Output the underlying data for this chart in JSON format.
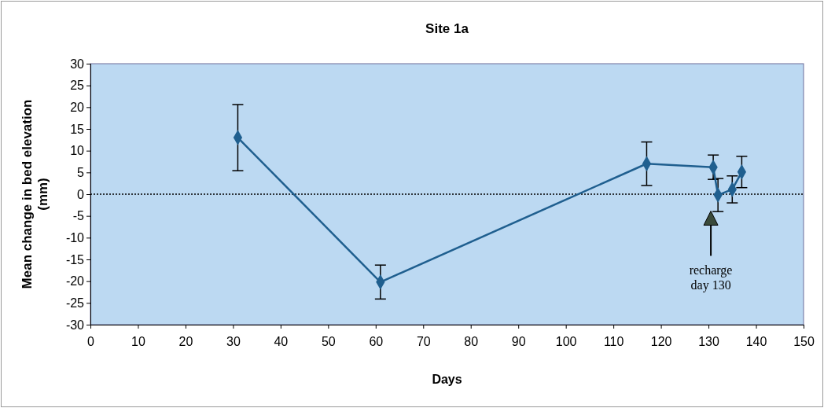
{
  "chart_data": {
    "type": "line",
    "title": "Site 1a",
    "xlabel": "Days",
    "ylabel": "Mean change in bed elevation (mm)",
    "x": [
      31,
      61,
      117,
      131,
      132,
      135,
      137
    ],
    "series": [
      {
        "color": "#1f5f8f",
        "values": [
          13,
          -20.2,
          7,
          6.2,
          -0.2,
          1.1,
          5.1
        ],
        "errors": [
          7.6,
          3.9,
          5,
          2.8,
          3.8,
          3.1,
          3.6
        ]
      }
    ],
    "xlim": [
      0,
      150
    ],
    "xticks": [
      0,
      10,
      20,
      30,
      40,
      50,
      60,
      70,
      80,
      90,
      100,
      110,
      120,
      130,
      140,
      150
    ],
    "ylim": [
      -30,
      30
    ],
    "yticks": [
      -30,
      -25,
      -20,
      -15,
      -10,
      -5,
      0,
      5,
      10,
      15,
      20,
      25,
      30
    ],
    "ref_lines": [
      {
        "axis": "y",
        "value": 0,
        "line_style": "dotted",
        "color": "#000000"
      }
    ],
    "annotations": [
      {
        "text": "recharge\nday 130",
        "x": 130.5,
        "y": -5.5
      }
    ],
    "marker": "diamond",
    "line_style": "solid",
    "grid": false
  }
}
